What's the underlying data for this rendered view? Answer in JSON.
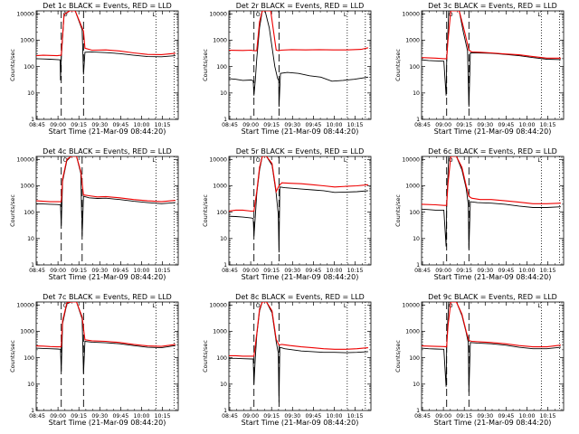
{
  "figure": {
    "common": {
      "xlabel": "Start Time (21-Mar-09 08:44:20)",
      "ylabel": "Counts/sec",
      "x_ticks": [
        "08:45",
        "09:00",
        "09:15",
        "09:30",
        "09:45",
        "10:00",
        "10:15"
      ],
      "x_tick_minutes": [
        0.67,
        15.67,
        30.67,
        45.67,
        60.67,
        75.67,
        90.67
      ],
      "y_ticks": [
        "1",
        "10",
        "100",
        "1000",
        "10000"
      ],
      "y_tick_values": [
        1,
        10,
        100,
        1000,
        10000
      ],
      "xlim": [
        0,
        102
      ],
      "ylim": [
        1,
        13000
      ],
      "legend": "BLACK = Events, RED = LLD",
      "colors": {
        "events": "#000000",
        "lld": "#ee0000",
        "axes": "#000000"
      }
    },
    "marker_labels": {
      "left": "O",
      "right": "L"
    }
  },
  "chart_data": [
    {
      "type": "line",
      "title": "Det 1c BLACK = Events, RED = LLD",
      "xlabel": "Start Time (21-Mar-09 08:44:20)",
      "ylabel": "Counts/sec",
      "ylim": [
        1,
        13000
      ],
      "dashed_x": [
        18,
        34
      ],
      "dotted_x": [
        86,
        99
      ],
      "series": [
        {
          "name": "Events",
          "x": [
            0,
            5,
            10,
            15,
            17.2,
            17.5,
            18,
            20,
            24,
            28,
            33,
            34,
            35,
            40,
            50,
            60,
            70,
            80,
            90,
            100
          ],
          "y": [
            200,
            195,
            190,
            185,
            180,
            30,
            200,
            9000,
            13000,
            13000,
            2500,
            50,
            350,
            360,
            340,
            310,
            270,
            240,
            235,
            260
          ]
        },
        {
          "name": "LLD",
          "x": [
            0,
            5,
            10,
            15,
            18,
            20,
            24,
            28,
            34,
            35,
            40,
            50,
            60,
            70,
            80,
            90,
            100
          ],
          "y": [
            260,
            270,
            265,
            260,
            270,
            9500,
            13000,
            13000,
            2200,
            500,
            420,
            430,
            390,
            330,
            290,
            285,
            320
          ]
        }
      ]
    },
    {
      "type": "line",
      "title": "Det 2r BLACK = Events, RED = LLD",
      "xlabel": "Start Time (21-Mar-09 08:44:20)",
      "ylabel": "Counts/sec",
      "ylim": [
        1,
        13000
      ],
      "dashed_x": [
        18,
        36
      ],
      "dotted_x": [
        85,
        98
      ],
      "series": [
        {
          "name": "Events",
          "x": [
            0,
            5,
            10,
            16,
            17.5,
            18,
            19,
            20,
            22,
            24,
            26,
            29,
            33,
            35,
            35.8,
            36,
            37,
            42,
            50,
            58,
            66,
            74,
            82,
            90,
            100
          ],
          "y": [
            35,
            33,
            30,
            31,
            29,
            8,
            30,
            200,
            3000,
            13000,
            13000,
            3000,
            100,
            35,
            30,
            3,
            55,
            60,
            55,
            45,
            40,
            28,
            30,
            33,
            40
          ]
        },
        {
          "name": "LLD",
          "x": [
            0,
            10,
            16,
            18,
            20,
            22,
            24,
            30,
            34,
            36,
            37,
            45,
            55,
            65,
            75,
            85,
            95,
            100
          ],
          "y": [
            420,
            410,
            420,
            400,
            400,
            5000,
            13000,
            13000,
            420,
            400,
            420,
            440,
            430,
            440,
            430,
            430,
            450,
            520
          ]
        }
      ]
    },
    {
      "type": "line",
      "title": "Det 3c BLACK = Events, RED = LLD",
      "xlabel": "Start Time (21-Mar-09 08:44:20)",
      "ylabel": "Counts/sec",
      "ylim": [
        1,
        13000
      ],
      "dashed_x": [
        18,
        34
      ],
      "dotted_x": [
        86,
        99
      ],
      "series": [
        {
          "name": "Events",
          "x": [
            0,
            5,
            10,
            16,
            17.6,
            18,
            18.6,
            19.5,
            21,
            23,
            27,
            30,
            33,
            34,
            35,
            40,
            50,
            60,
            70,
            80,
            90,
            100
          ],
          "y": [
            180,
            170,
            165,
            160,
            8,
            130,
            800,
            13000,
            13000,
            13000,
            13000,
            2000,
            400,
            3,
            330,
            330,
            320,
            290,
            260,
            220,
            190,
            185
          ]
        },
        {
          "name": "LLD",
          "x": [
            0,
            10,
            16,
            18,
            19,
            21,
            27,
            31,
            34,
            36,
            42,
            50,
            60,
            70,
            80,
            90,
            100
          ],
          "y": [
            220,
            210,
            200,
            200,
            1000,
            13000,
            13000,
            2000,
            420,
            360,
            350,
            330,
            300,
            280,
            240,
            210,
            210
          ]
        }
      ]
    },
    {
      "type": "line",
      "title": "Det 4c BLACK = Events, RED = LLD",
      "xlabel": "Start Time (21-Mar-09 08:44:20)",
      "ylabel": "Counts/sec",
      "ylim": [
        1,
        13000
      ],
      "dashed_x": [
        18,
        33
      ],
      "dotted_x": [
        86,
        99
      ],
      "series": [
        {
          "name": "Events",
          "x": [
            0,
            5,
            10,
            15,
            17.5,
            18,
            19,
            22,
            25,
            29,
            32,
            33,
            34,
            38,
            44,
            50,
            60,
            70,
            80,
            90,
            100
          ],
          "y": [
            210,
            205,
            200,
            195,
            190,
            30,
            1500,
            9000,
            13000,
            13000,
            3000,
            12,
            400,
            350,
            330,
            340,
            300,
            260,
            230,
            210,
            230
          ]
        },
        {
          "name": "LLD",
          "x": [
            0,
            5,
            10,
            15,
            18,
            19,
            22,
            25,
            29,
            32,
            34,
            38,
            44,
            50,
            60,
            70,
            80,
            90,
            100
          ],
          "y": [
            270,
            260,
            250,
            250,
            250,
            1800,
            10000,
            13000,
            13000,
            3500,
            450,
            420,
            380,
            390,
            350,
            300,
            270,
            250,
            280
          ]
        }
      ]
    },
    {
      "type": "line",
      "title": "Det 5r BLACK = Events, RED = LLD",
      "xlabel": "Start Time (21-Mar-09 08:44:20)",
      "ylabel": "Counts/sec",
      "ylim": [
        1,
        13000
      ],
      "dashed_x": [
        18,
        36
      ],
      "dotted_x": [
        85,
        98
      ],
      "series": [
        {
          "name": "Events",
          "x": [
            0,
            5,
            10,
            16,
            17.5,
            18,
            19,
            20,
            22,
            24,
            27,
            31,
            34,
            35.5,
            36,
            36.6,
            40,
            46,
            52,
            60,
            68,
            76,
            84,
            92,
            100
          ],
          "y": [
            70,
            68,
            65,
            60,
            58,
            12,
            70,
            500,
            4000,
            13000,
            13000,
            6000,
            500,
            80,
            3,
            900,
            850,
            800,
            750,
            700,
            650,
            560,
            580,
            600,
            650
          ]
        },
        {
          "name": "LLD",
          "x": [
            0,
            5,
            10,
            16,
            18,
            20,
            22,
            24,
            27,
            31,
            34,
            36,
            38,
            44,
            52,
            60,
            68,
            76,
            84,
            92,
            100
          ],
          "y": [
            110,
            120,
            120,
            110,
            110,
            600,
            5000,
            13000,
            13000,
            7000,
            600,
            1000,
            1300,
            1250,
            1200,
            1100,
            1000,
            900,
            950,
            1000,
            1100
          ]
        }
      ]
    },
    {
      "type": "line",
      "title": "Det 6c BLACK = Events, RED = LLD",
      "xlabel": "Start Time (21-Mar-09 08:44:20)",
      "ylabel": "Counts/sec",
      "ylim": [
        1,
        13000
      ],
      "dashed_x": [
        18,
        34
      ],
      "dotted_x": [
        86,
        99
      ],
      "series": [
        {
          "name": "Events",
          "x": [
            0,
            5,
            10,
            16,
            17.6,
            18,
            18.6,
            19.5,
            21,
            25,
            29,
            32,
            33.5,
            34,
            35,
            40,
            50,
            60,
            70,
            80,
            90,
            100
          ],
          "y": [
            130,
            125,
            120,
            120,
            5,
            150,
            1000,
            13000,
            13000,
            13000,
            4000,
            800,
            200,
            4,
            250,
            230,
            220,
            200,
            170,
            150,
            150,
            160
          ]
        },
        {
          "name": "LLD",
          "x": [
            0,
            10,
            16,
            18,
            19,
            21,
            25,
            29,
            32,
            34,
            36,
            42,
            50,
            60,
            70,
            80,
            90,
            100
          ],
          "y": [
            200,
            190,
            180,
            180,
            1200,
            13000,
            13000,
            5000,
            1000,
            400,
            340,
            300,
            300,
            270,
            240,
            210,
            210,
            220
          ]
        }
      ]
    },
    {
      "type": "line",
      "title": "Det 7c BLACK = Events, RED = LLD",
      "xlabel": "Start Time (21-Mar-09 08:44:20)",
      "ylabel": "Counts/sec",
      "ylim": [
        1,
        13000
      ],
      "dashed_x": [
        18,
        34
      ],
      "dotted_x": [
        86,
        99
      ],
      "series": [
        {
          "name": "Events",
          "x": [
            0,
            5,
            10,
            15,
            17.5,
            18,
            19,
            22,
            25,
            29,
            33,
            34,
            35,
            40,
            50,
            60,
            70,
            80,
            90,
            100
          ],
          "y": [
            230,
            225,
            220,
            215,
            210,
            30,
            2000,
            11000,
            13000,
            13000,
            3000,
            25,
            420,
            390,
            370,
            340,
            290,
            250,
            240,
            290
          ]
        },
        {
          "name": "LLD",
          "x": [
            0,
            5,
            10,
            15,
            18,
            19,
            22,
            25,
            29,
            33,
            35,
            40,
            50,
            60,
            70,
            80,
            90,
            100
          ],
          "y": [
            280,
            275,
            265,
            260,
            260,
            2500,
            12000,
            13000,
            13000,
            3500,
            480,
            440,
            420,
            380,
            320,
            280,
            270,
            320
          ]
        }
      ]
    },
    {
      "type": "line",
      "title": "Det 8c BLACK = Events, RED = LLD",
      "xlabel": "Start Time (21-Mar-09 08:44:20)",
      "ylabel": "Counts/sec",
      "ylim": [
        1,
        13000
      ],
      "dashed_x": [
        18,
        36
      ],
      "dotted_x": [
        85,
        98
      ],
      "series": [
        {
          "name": "Events",
          "x": [
            0,
            5,
            10,
            16,
            17.5,
            18,
            19,
            20,
            22,
            24,
            27,
            31,
            34,
            35.5,
            36,
            36.6,
            40,
            46,
            52,
            60,
            68,
            76,
            84,
            92,
            100
          ],
          "y": [
            95,
            95,
            92,
            90,
            90,
            10,
            100,
            700,
            6000,
            13000,
            13000,
            5000,
            400,
            150,
            2,
            250,
            220,
            200,
            180,
            170,
            160,
            160,
            155,
            160,
            170
          ]
        },
        {
          "name": "LLD",
          "x": [
            0,
            5,
            10,
            16,
            18,
            20,
            22,
            24,
            27,
            31,
            34,
            36,
            38,
            44,
            52,
            60,
            68,
            76,
            84,
            92,
            100
          ],
          "y": [
            120,
            120,
            115,
            115,
            115,
            800,
            7000,
            13000,
            13000,
            6000,
            500,
            300,
            320,
            290,
            260,
            240,
            220,
            210,
            210,
            220,
            240
          ]
        }
      ]
    },
    {
      "type": "line",
      "title": "Det 9c BLACK = Events, RED = LLD",
      "xlabel": "Start Time (21-Mar-09 08:44:20)",
      "ylabel": "Counts/sec",
      "ylim": [
        1,
        13000
      ],
      "dashed_x": [
        18,
        34
      ],
      "dotted_x": [
        86,
        99
      ],
      "series": [
        {
          "name": "Events",
          "x": [
            0,
            5,
            10,
            16,
            17.6,
            18,
            18.6,
            19.5,
            21,
            25,
            29,
            32,
            33.5,
            34,
            35,
            40,
            50,
            60,
            70,
            80,
            90,
            100
          ],
          "y": [
            230,
            220,
            215,
            210,
            8,
            220,
            1500,
            13000,
            13000,
            13000,
            4000,
            900,
            380,
            5,
            380,
            360,
            340,
            300,
            250,
            220,
            220,
            250
          ]
        },
        {
          "name": "LLD",
          "x": [
            0,
            10,
            16,
            18,
            19,
            21,
            25,
            29,
            32,
            34,
            36,
            42,
            50,
            60,
            70,
            80,
            90,
            100
          ],
          "y": [
            280,
            270,
            265,
            260,
            1600,
            13000,
            13000,
            4500,
            1000,
            450,
            420,
            400,
            380,
            340,
            290,
            260,
            260,
            300
          ]
        }
      ]
    }
  ]
}
